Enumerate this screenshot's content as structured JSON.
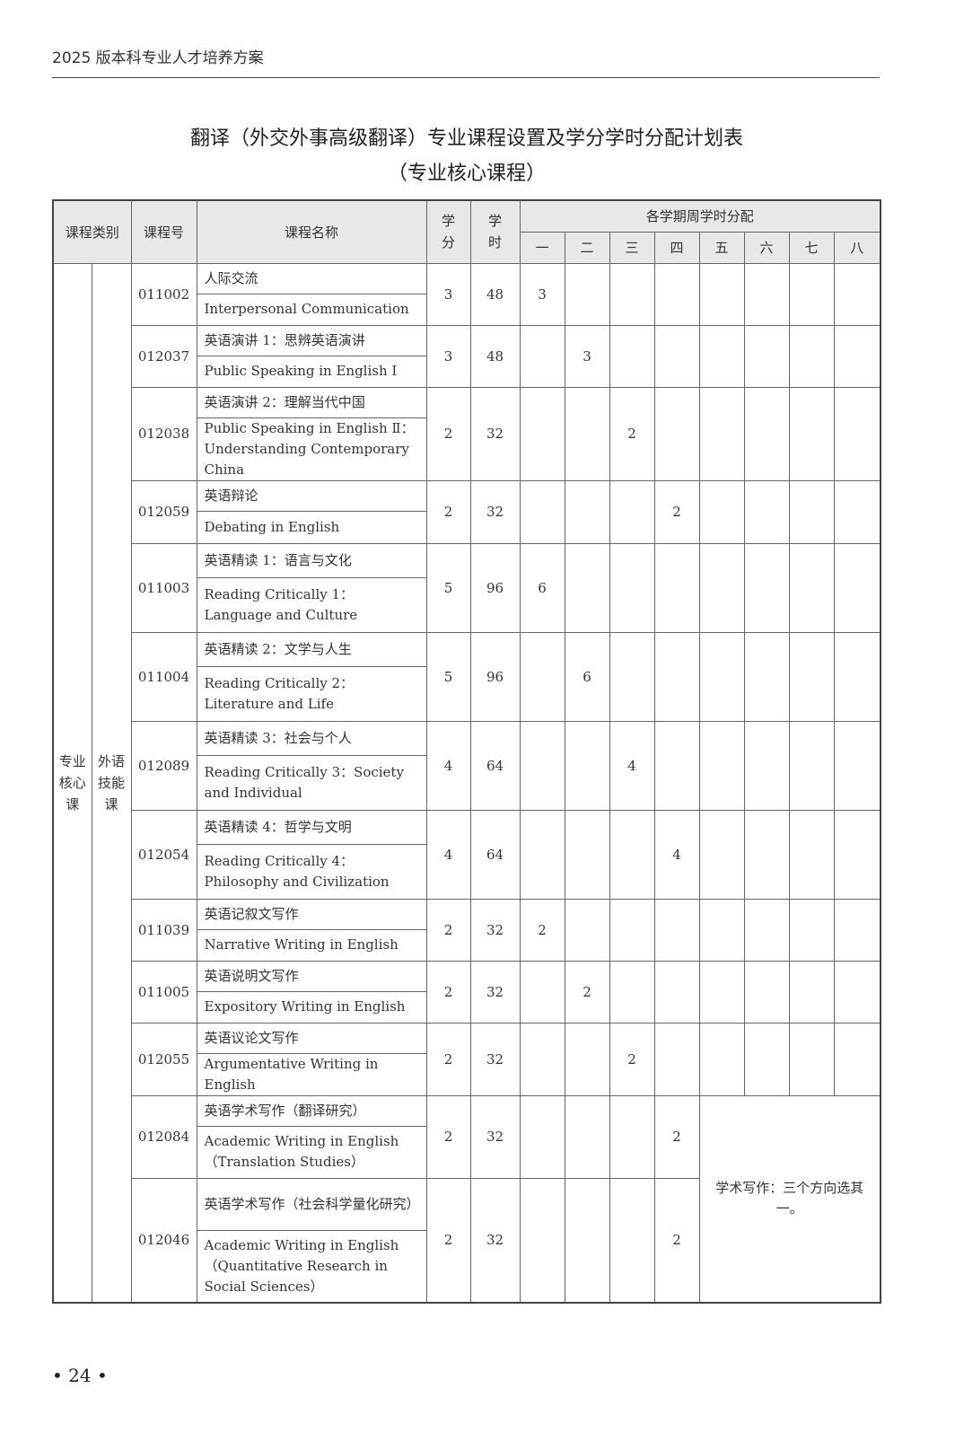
{
  "running_head": "2025 版本科专业人才培养方案",
  "title": "翻译（外交外事高级翻译）专业课程设置及学分学时分配计划表",
  "subtitle": "（专业核心课程）",
  "headers": {
    "category": "课程类别",
    "code": "课程号",
    "name": "课程名称",
    "credits": "学\n分",
    "hours": "学\n时",
    "semesters_group": "各学期周学时分配",
    "semesters": [
      "一",
      "二",
      "三",
      "四",
      "五",
      "六",
      "七",
      "八"
    ]
  },
  "category": {
    "main": "专业核心课",
    "sub": "外语技能课"
  },
  "courses": [
    {
      "code": "011002",
      "cn": "人际交流",
      "en": "Interpersonal Communication",
      "credits": "3",
      "hours": "48",
      "sem": [
        "3",
        "",
        "",
        "",
        "",
        "",
        "",
        ""
      ]
    },
    {
      "code": "012037",
      "cn": "英语演讲 1：思辨英语演讲",
      "en": "Public Speaking in English Ⅰ",
      "credits": "3",
      "hours": "48",
      "sem": [
        "",
        "3",
        "",
        "",
        "",
        "",
        "",
        ""
      ]
    },
    {
      "code": "012038",
      "cn": "英语演讲 2：理解当代中国",
      "en": "Public Speaking in English Ⅱ：Understanding Contemporary China",
      "credits": "2",
      "hours": "32",
      "sem": [
        "",
        "",
        "2",
        "",
        "",
        "",
        "",
        ""
      ]
    },
    {
      "code": "012059",
      "cn": "英语辩论",
      "en": "Debating in English",
      "credits": "2",
      "hours": "32",
      "sem": [
        "",
        "",
        "",
        "2",
        "",
        "",
        "",
        ""
      ]
    },
    {
      "code": "011003",
      "cn": "英语精读 1：语言与文化",
      "en": "Reading Critically 1：Language and Culture",
      "credits": "5",
      "hours": "96",
      "sem": [
        "6",
        "",
        "",
        "",
        "",
        "",
        "",
        ""
      ]
    },
    {
      "code": "011004",
      "cn": "英语精读 2：文学与人生",
      "en": "Reading Critically 2：Literature and Life",
      "credits": "5",
      "hours": "96",
      "sem": [
        "",
        "6",
        "",
        "",
        "",
        "",
        "",
        ""
      ]
    },
    {
      "code": "012089",
      "cn": "英语精读 3：社会与个人",
      "en": "Reading Critically 3：Society and Individual",
      "credits": "4",
      "hours": "64",
      "sem": [
        "",
        "",
        "4",
        "",
        "",
        "",
        "",
        ""
      ]
    },
    {
      "code": "012054",
      "cn": "英语精读 4：哲学与文明",
      "en": "Reading Critically 4：Philosophy and Civilization",
      "credits": "4",
      "hours": "64",
      "sem": [
        "",
        "",
        "",
        "4",
        "",
        "",
        "",
        ""
      ]
    },
    {
      "code": "011039",
      "cn": "英语记叙文写作",
      "en": "Narrative Writing in English",
      "credits": "2",
      "hours": "32",
      "sem": [
        "2",
        "",
        "",
        "",
        "",
        "",
        "",
        ""
      ]
    },
    {
      "code": "011005",
      "cn": "英语说明文写作",
      "en": "Expository Writing in English",
      "credits": "2",
      "hours": "32",
      "sem": [
        "",
        "2",
        "",
        "",
        "",
        "",
        "",
        ""
      ]
    },
    {
      "code": "012055",
      "cn": "英语议论文写作",
      "en": "Argumentative Writing in English",
      "credits": "2",
      "hours": "32",
      "sem": [
        "",
        "",
        "2",
        "",
        "",
        "",
        "",
        ""
      ]
    },
    {
      "code": "012084",
      "cn": "英语学术写作（翻译研究）",
      "en": "Academic Writing in English（Translation Studies）",
      "credits": "2",
      "hours": "32",
      "sem": [
        "",
        "",
        "",
        "2"
      ]
    },
    {
      "code": "012046",
      "cn": "英语学术写作（社会科学量化研究）",
      "en": "Academic Writing in English（Quantitative Research in Social Sciences）",
      "credits": "2",
      "hours": "32",
      "sem": [
        "",
        "",
        "",
        "2"
      ]
    }
  ],
  "note": "学术写作：三个方向选其一。",
  "folio": "• 24 •"
}
